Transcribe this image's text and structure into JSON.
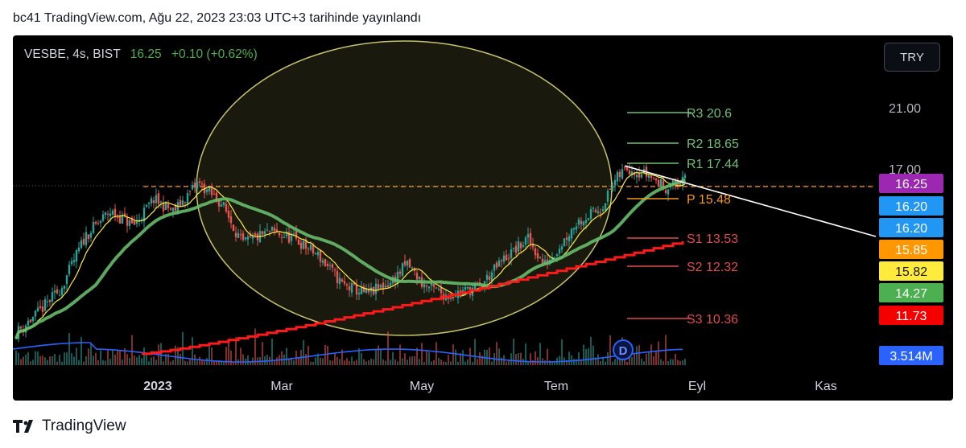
{
  "caption": "bc41 TradingView.com, Ağu 22, 2023 23:03 UTC+3 tarihinde yayınlandı",
  "legend": {
    "symbol": "VESBE, 4s, BIST",
    "last": "16.25",
    "change": "+0.10 (+0.62%)"
  },
  "currency_button": "TRY",
  "footer_brand": "TradingView",
  "colors": {
    "background": "#000000",
    "up": "#26a69a",
    "down": "#ef5350",
    "ma_yellow": "#ffeb3b",
    "ma_green": "#66bb6a",
    "ma_red": "#ff1a1a",
    "volume": "#2962ff",
    "ellipse": "#c8c36a",
    "pivot_resistance": "#6fbf73",
    "pivot_pivot": "#f59a1b",
    "pivot_support": "#e04b4b",
    "dividend": "#2962ff"
  },
  "chart_data": {
    "type": "candlestick",
    "x_axis_labels": [
      "2023",
      "Mar",
      "May",
      "Tem",
      "Eyl",
      "Kas"
    ],
    "y_tick_labels": [
      "21.00",
      "17.00"
    ],
    "pivot_levels": [
      {
        "label": "R3",
        "value": "20.6"
      },
      {
        "label": "R2",
        "value": "18.65"
      },
      {
        "label": "R1",
        "value": "17.44"
      },
      {
        "label": "P",
        "value": "15.48"
      },
      {
        "label": "S1",
        "value": "13.53"
      },
      {
        "label": "S2",
        "value": "12.32"
      },
      {
        "label": "S3",
        "value": "10.36"
      }
    ],
    "price_badges": [
      {
        "text": "16.25",
        "color": "#9c27b0"
      },
      {
        "text": "16.20",
        "color": "#2196f3"
      },
      {
        "text": "16.20",
        "color": "#2196f3"
      },
      {
        "text": "15.85",
        "color": "#ff9800"
      },
      {
        "text": "15.82",
        "color": "#ffeb3b"
      },
      {
        "text": "14.27",
        "color": "#4caf50"
      },
      {
        "text": "11.73",
        "color": "#f50000"
      }
    ],
    "volume_badge": "3.514M",
    "dividend_marker": "D",
    "trendline": {
      "from_price": 17.2,
      "to_price": 13.2
    },
    "horizontal_dashed_price": 15.85
  }
}
